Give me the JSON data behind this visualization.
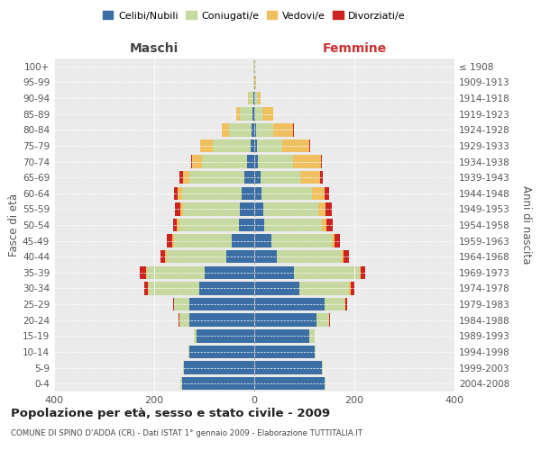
{
  "age_groups": [
    "0-4",
    "5-9",
    "10-14",
    "15-19",
    "20-24",
    "25-29",
    "30-34",
    "35-39",
    "40-44",
    "45-49",
    "50-54",
    "55-59",
    "60-64",
    "65-69",
    "70-74",
    "75-79",
    "80-84",
    "85-89",
    "90-94",
    "95-99",
    "100+"
  ],
  "birth_years": [
    "2004-2008",
    "1999-2003",
    "1994-1998",
    "1989-1993",
    "1984-1988",
    "1979-1983",
    "1974-1978",
    "1969-1973",
    "1964-1968",
    "1959-1963",
    "1954-1958",
    "1949-1953",
    "1944-1948",
    "1939-1943",
    "1934-1938",
    "1929-1933",
    "1924-1928",
    "1919-1923",
    "1914-1918",
    "1909-1913",
    "≤ 1908"
  ],
  "male": {
    "celibi": [
      145,
      140,
      130,
      115,
      130,
      130,
      110,
      100,
      55,
      45,
      30,
      28,
      25,
      20,
      15,
      8,
      5,
      3,
      2,
      0,
      0
    ],
    "coniugati": [
      2,
      2,
      2,
      5,
      20,
      30,
      100,
      115,
      120,
      115,
      120,
      115,
      120,
      110,
      90,
      75,
      45,
      25,
      8,
      2,
      1
    ],
    "vedovi": [
      0,
      0,
      0,
      0,
      0,
      0,
      2,
      2,
      3,
      4,
      5,
      5,
      8,
      12,
      20,
      25,
      15,
      8,
      3,
      0,
      0
    ],
    "divorziati": [
      0,
      0,
      0,
      0,
      2,
      3,
      8,
      12,
      10,
      10,
      8,
      10,
      8,
      8,
      2,
      0,
      0,
      0,
      0,
      0,
      0
    ]
  },
  "female": {
    "nubili": [
      140,
      135,
      120,
      110,
      125,
      140,
      90,
      80,
      45,
      35,
      20,
      18,
      15,
      12,
      8,
      5,
      3,
      2,
      2,
      0,
      0
    ],
    "coniugate": [
      2,
      2,
      3,
      10,
      25,
      40,
      100,
      130,
      130,
      120,
      115,
      110,
      100,
      80,
      70,
      50,
      35,
      15,
      5,
      2,
      1
    ],
    "vedove": [
      0,
      0,
      0,
      0,
      0,
      2,
      2,
      2,
      3,
      5,
      10,
      15,
      25,
      40,
      55,
      55,
      40,
      20,
      5,
      1,
      0
    ],
    "divorziate": [
      0,
      0,
      0,
      0,
      2,
      3,
      8,
      10,
      12,
      12,
      12,
      12,
      10,
      5,
      2,
      2,
      1,
      0,
      0,
      0,
      0
    ]
  },
  "colors": {
    "celibi_nubili": "#3a6ea5",
    "coniugati": "#c5d9a0",
    "vedovi": "#f0c060",
    "divorziati": "#cc2222"
  },
  "title": "Popolazione per età, sesso e stato civile - 2009",
  "subtitle": "COMUNE DI SPINO D'ADDA (CR) - Dati ISTAT 1° gennaio 2009 - Elaborazione TUTTITALIA.IT",
  "xlabel_left": "Maschi",
  "xlabel_right": "Femmine",
  "ylabel_left": "Fasce di età",
  "ylabel_right": "Anni di nascita",
  "xlim": 400,
  "bg_color": "#ebebeb",
  "legend_labels": [
    "Celibi/Nubili",
    "Coniugati/e",
    "Vedovi/e",
    "Divorziati/e"
  ]
}
